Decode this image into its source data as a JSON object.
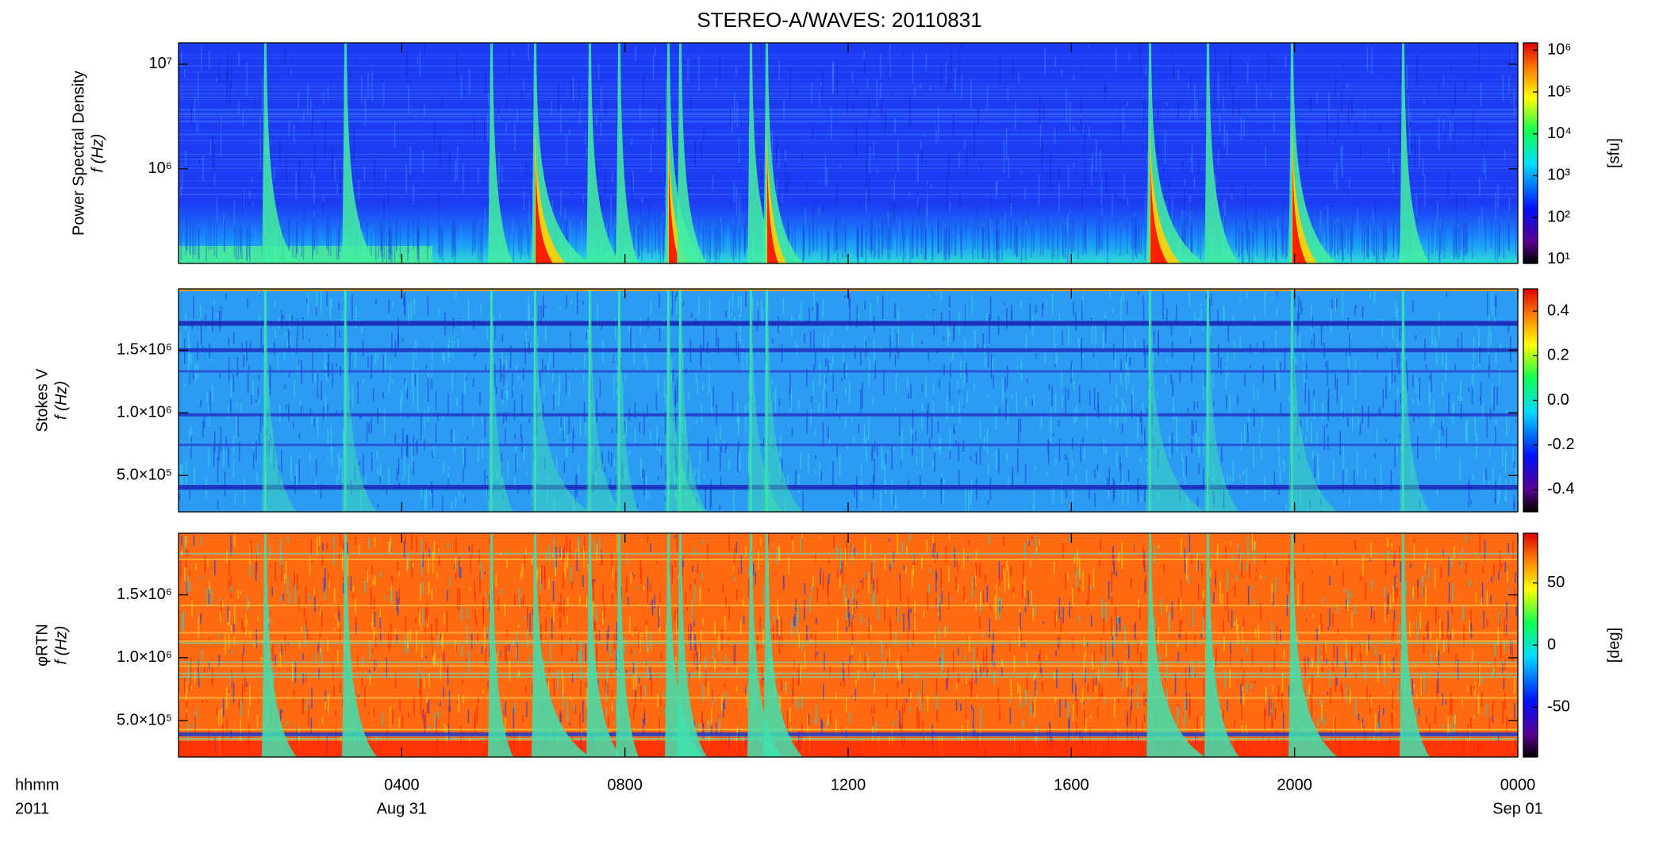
{
  "chart_data": [
    {
      "type": "heatmap",
      "title": "STEREO-A/WAVES: 20110831",
      "ylabel": [
        "Power Spectral Density",
        "f (Hz)"
      ],
      "ylog": true,
      "ylim": [
        125000,
        16000000
      ],
      "yticks": [
        {
          "value": 1000000,
          "label": "10⁶"
        },
        {
          "value": 10000000,
          "label": "10⁷"
        }
      ],
      "xlim": [
        0,
        24
      ],
      "colorbar": {
        "label": "[sfu]",
        "log": true,
        "lim": [
          8,
          1500000
        ],
        "ticks": [
          {
            "value": 10,
            "label": "10¹"
          },
          {
            "value": 100,
            "label": "10²"
          },
          {
            "value": 1000,
            "label": "10³"
          },
          {
            "value": 10000,
            "label": "10⁴"
          },
          {
            "value": 100000,
            "label": "10⁵"
          },
          {
            "value": 1000000,
            "label": "10⁶"
          }
        ]
      }
    },
    {
      "type": "heatmap",
      "ylabel": [
        "Stokes V",
        "f (Hz)"
      ],
      "ylog": false,
      "ylim": [
        210000,
        1990000
      ],
      "yticks": [
        {
          "value": 500000,
          "label": "5.0×10⁵"
        },
        {
          "value": 1000000,
          "label": "1.0×10⁶"
        },
        {
          "value": 1500000,
          "label": "1.5×10⁶"
        }
      ],
      "xlim": [
        0,
        24
      ],
      "colorbar": {
        "log": false,
        "lim": [
          -0.5,
          0.5
        ],
        "ticks": [
          -0.4,
          -0.2,
          {
            "value": 0,
            "label": "0.0"
          },
          0.2,
          0.4
        ]
      }
    },
    {
      "type": "heatmap",
      "ylabel": [
        "φRTN",
        "f (Hz)"
      ],
      "ylog": false,
      "ylim": [
        210000,
        1990000
      ],
      "yticks": [
        {
          "value": 500000,
          "label": "5.0×10⁵"
        },
        {
          "value": 1000000,
          "label": "1.0×10⁶"
        },
        {
          "value": 1500000,
          "label": "1.5×10⁶"
        }
      ],
      "xlim": [
        0,
        24
      ],
      "xticks": [
        {
          "value": 4,
          "label": "0400"
        },
        {
          "value": 8,
          "label": "0800"
        },
        {
          "value": 12,
          "label": "1200"
        },
        {
          "value": 16,
          "label": "1600"
        },
        {
          "value": 20,
          "label": "2000"
        },
        {
          "value": 24,
          "label": "0000"
        }
      ],
      "x_date_labels": [
        {
          "value": 4,
          "label": "Aug 31"
        },
        {
          "value": 24,
          "label": "Sep 01"
        }
      ],
      "xlabel": [
        "hhmm",
        "2011"
      ],
      "colorbar": {
        "label": "[deg]",
        "log": false,
        "lim": [
          -90,
          90
        ],
        "ticks": [
          -50,
          0,
          50
        ]
      }
    }
  ]
}
